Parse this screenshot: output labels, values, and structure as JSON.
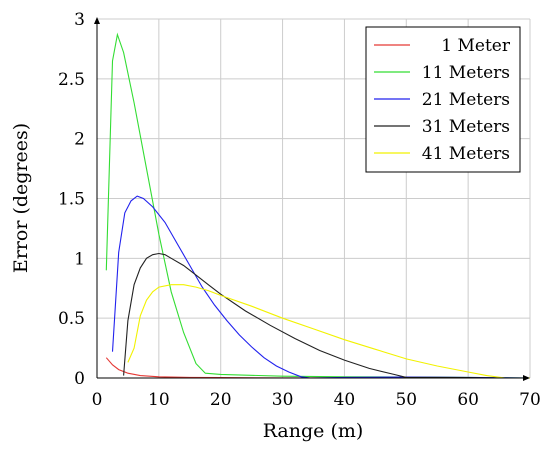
{
  "chart_data": {
    "type": "line",
    "xlabel": "Range (m)",
    "ylabel": "Error (degrees)",
    "xlim": [
      0,
      70
    ],
    "ylim": [
      0,
      3
    ],
    "xticks": [
      0,
      10,
      20,
      30,
      40,
      50,
      60,
      70
    ],
    "yticks": [
      0,
      0.5,
      1,
      1.5,
      2,
      2.5,
      3
    ],
    "ytick_labels": [
      "0",
      "0.5",
      "1",
      "1.5",
      "2",
      "2.5",
      "3"
    ],
    "grid": true,
    "legend": "top-right",
    "series": [
      {
        "name": "1 Meter",
        "color": "#e53935",
        "points": [
          [
            1.5,
            0.17
          ],
          [
            2.5,
            0.11
          ],
          [
            3.5,
            0.07
          ],
          [
            5,
            0.04
          ],
          [
            7,
            0.02
          ],
          [
            10,
            0.01
          ],
          [
            15,
            0.005
          ],
          [
            20,
            0.003
          ],
          [
            30,
            0.001
          ],
          [
            50,
            0.0
          ],
          [
            70,
            0.0
          ]
        ]
      },
      {
        "name": "11 Meters",
        "color": "#33dd33",
        "points": [
          [
            1.5,
            0.9
          ],
          [
            2.5,
            2.65
          ],
          [
            3.3,
            2.87
          ],
          [
            4.3,
            2.72
          ],
          [
            6,
            2.3
          ],
          [
            8,
            1.75
          ],
          [
            10,
            1.2
          ],
          [
            12,
            0.72
          ],
          [
            14,
            0.38
          ],
          [
            16,
            0.12
          ],
          [
            17.5,
            0.04
          ],
          [
            20,
            0.03
          ],
          [
            30,
            0.015
          ],
          [
            40,
            0.01
          ],
          [
            50,
            0.008
          ],
          [
            60,
            0.005
          ],
          [
            70,
            0.0
          ]
        ]
      },
      {
        "name": "21 Meters",
        "color": "#2222ee",
        "points": [
          [
            2.5,
            0.22
          ],
          [
            3.5,
            1.05
          ],
          [
            4.5,
            1.38
          ],
          [
            5.5,
            1.48
          ],
          [
            6.5,
            1.52
          ],
          [
            7.5,
            1.5
          ],
          [
            9,
            1.43
          ],
          [
            11,
            1.3
          ],
          [
            13,
            1.12
          ],
          [
            15,
            0.94
          ],
          [
            17,
            0.76
          ],
          [
            19,
            0.61
          ],
          [
            21,
            0.48
          ],
          [
            23,
            0.36
          ],
          [
            25,
            0.26
          ],
          [
            27,
            0.17
          ],
          [
            29,
            0.1
          ],
          [
            31,
            0.05
          ],
          [
            33,
            0.01
          ],
          [
            34.5,
            0.0
          ],
          [
            40,
            0.005
          ],
          [
            50,
            0.008
          ],
          [
            60,
            0.005
          ],
          [
            70,
            0.0
          ]
        ]
      },
      {
        "name": "31 Meters",
        "color": "#222222",
        "points": [
          [
            4.3,
            0.02
          ],
          [
            5,
            0.48
          ],
          [
            6,
            0.78
          ],
          [
            7,
            0.92
          ],
          [
            8,
            1.0
          ],
          [
            9,
            1.03
          ],
          [
            10,
            1.04
          ],
          [
            11,
            1.03
          ],
          [
            12,
            1.0
          ],
          [
            14,
            0.94
          ],
          [
            16,
            0.86
          ],
          [
            18,
            0.78
          ],
          [
            20,
            0.7
          ],
          [
            24,
            0.56
          ],
          [
            28,
            0.44
          ],
          [
            32,
            0.33
          ],
          [
            36,
            0.23
          ],
          [
            40,
            0.15
          ],
          [
            44,
            0.08
          ],
          [
            48,
            0.03
          ],
          [
            50,
            0.005
          ],
          [
            55,
            0.005
          ],
          [
            60,
            0.003
          ],
          [
            65,
            0.0
          ],
          [
            70,
            0.0
          ]
        ]
      },
      {
        "name": "41 Meters",
        "color": "#f2f200",
        "points": [
          [
            5,
            0.13
          ],
          [
            6,
            0.25
          ],
          [
            7,
            0.52
          ],
          [
            8,
            0.65
          ],
          [
            9,
            0.72
          ],
          [
            10,
            0.76
          ],
          [
            12,
            0.78
          ],
          [
            14,
            0.78
          ],
          [
            16,
            0.76
          ],
          [
            18,
            0.73
          ],
          [
            20,
            0.69
          ],
          [
            25,
            0.6
          ],
          [
            30,
            0.5
          ],
          [
            35,
            0.41
          ],
          [
            40,
            0.32
          ],
          [
            45,
            0.24
          ],
          [
            50,
            0.16
          ],
          [
            55,
            0.1
          ],
          [
            60,
            0.05
          ],
          [
            63,
            0.02
          ],
          [
            66,
            0.0
          ],
          [
            70,
            0.0
          ]
        ]
      }
    ]
  }
}
